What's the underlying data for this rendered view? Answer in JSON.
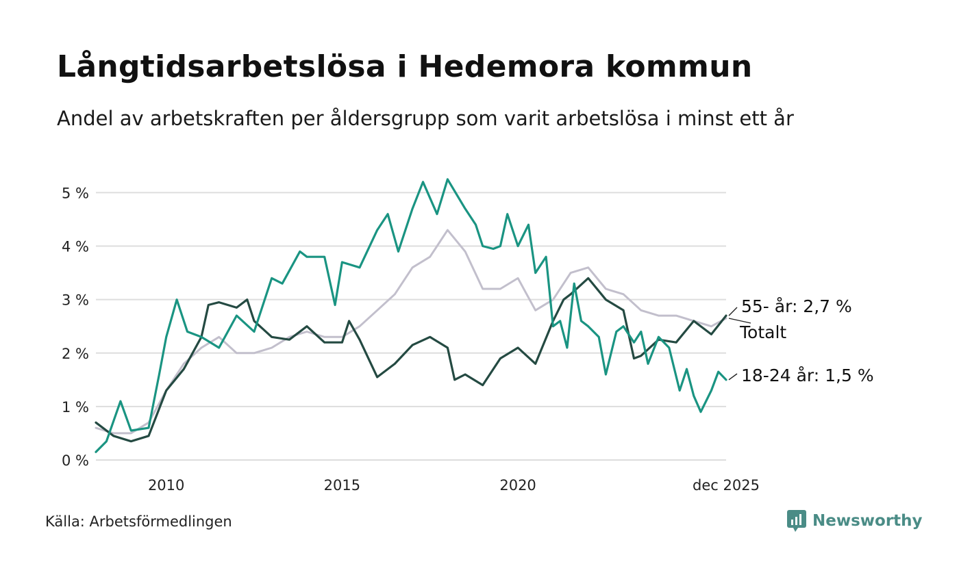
{
  "header": {
    "title": "Långtidsarbetslösa i Hedemora kommun",
    "subtitle": "Andel av arbetskraften per åldersgrupp som varit arbetslösa i minst ett år"
  },
  "footer": {
    "source": "Källa: Arbetsförmedlingen",
    "brand": "Newsworthy"
  },
  "colors": {
    "youth": "#1a9482",
    "senior": "#244a42",
    "total": "#c2bfcc",
    "grid": "#dddddd"
  },
  "chart_data": {
    "type": "line",
    "title": "Långtidsarbetslösa i Hedemora kommun",
    "subtitle": "Andel av arbetskraften per åldersgrupp som varit arbetslösa i minst ett år",
    "xlabel": "",
    "ylabel": "",
    "ylim": [
      0,
      5.3
    ],
    "xlim": [
      2008.0,
      2025.92
    ],
    "grid": true,
    "y_ticks": [
      {
        "value": 0,
        "label": "0 %"
      },
      {
        "value": 1,
        "label": "1 %"
      },
      {
        "value": 2,
        "label": "2 %"
      },
      {
        "value": 3,
        "label": "3 %"
      },
      {
        "value": 4,
        "label": "4 %"
      },
      {
        "value": 5,
        "label": "5 %"
      }
    ],
    "x_ticks": [
      {
        "value": 2010,
        "label": "2010"
      },
      {
        "value": 2015,
        "label": "2015"
      },
      {
        "value": 2020,
        "label": "2020"
      },
      {
        "value": 2025.92,
        "label": "dec 2025"
      }
    ],
    "series": [
      {
        "name": "Totalt",
        "label": "Totalt",
        "color": "#c2bfcc",
        "points": [
          [
            2008.0,
            0.6
          ],
          [
            2008.5,
            0.5
          ],
          [
            2009.0,
            0.5
          ],
          [
            2009.5,
            0.7
          ],
          [
            2010.0,
            1.3
          ],
          [
            2010.5,
            1.8
          ],
          [
            2011.0,
            2.1
          ],
          [
            2011.5,
            2.3
          ],
          [
            2012.0,
            2.0
          ],
          [
            2012.5,
            2.0
          ],
          [
            2013.0,
            2.1
          ],
          [
            2013.5,
            2.3
          ],
          [
            2014.0,
            2.4
          ],
          [
            2014.5,
            2.3
          ],
          [
            2015.0,
            2.3
          ],
          [
            2015.5,
            2.5
          ],
          [
            2016.0,
            2.8
          ],
          [
            2016.5,
            3.1
          ],
          [
            2017.0,
            3.6
          ],
          [
            2017.5,
            3.8
          ],
          [
            2018.0,
            4.3
          ],
          [
            2018.5,
            3.9
          ],
          [
            2019.0,
            3.2
          ],
          [
            2019.5,
            3.2
          ],
          [
            2020.0,
            3.4
          ],
          [
            2020.5,
            2.8
          ],
          [
            2021.0,
            3.0
          ],
          [
            2021.5,
            3.5
          ],
          [
            2022.0,
            3.6
          ],
          [
            2022.5,
            3.2
          ],
          [
            2023.0,
            3.1
          ],
          [
            2023.5,
            2.8
          ],
          [
            2024.0,
            2.7
          ],
          [
            2024.5,
            2.7
          ],
          [
            2025.0,
            2.6
          ],
          [
            2025.5,
            2.5
          ],
          [
            2025.92,
            2.65
          ]
        ]
      },
      {
        "name": "55- år",
        "label": "55- år: 2,7 %",
        "color": "#244a42",
        "points": [
          [
            2008.0,
            0.7
          ],
          [
            2008.5,
            0.45
          ],
          [
            2009.0,
            0.35
          ],
          [
            2009.5,
            0.45
          ],
          [
            2010.0,
            1.3
          ],
          [
            2010.5,
            1.7
          ],
          [
            2011.0,
            2.3
          ],
          [
            2011.2,
            2.9
          ],
          [
            2011.5,
            2.95
          ],
          [
            2012.0,
            2.85
          ],
          [
            2012.3,
            3.0
          ],
          [
            2012.5,
            2.6
          ],
          [
            2013.0,
            2.3
          ],
          [
            2013.5,
            2.25
          ],
          [
            2014.0,
            2.5
          ],
          [
            2014.5,
            2.2
          ],
          [
            2015.0,
            2.2
          ],
          [
            2015.2,
            2.6
          ],
          [
            2015.5,
            2.25
          ],
          [
            2016.0,
            1.55
          ],
          [
            2016.5,
            1.8
          ],
          [
            2017.0,
            2.15
          ],
          [
            2017.5,
            2.3
          ],
          [
            2018.0,
            2.1
          ],
          [
            2018.2,
            1.5
          ],
          [
            2018.5,
            1.6
          ],
          [
            2019.0,
            1.4
          ],
          [
            2019.5,
            1.9
          ],
          [
            2020.0,
            2.1
          ],
          [
            2020.5,
            1.8
          ],
          [
            2021.0,
            2.6
          ],
          [
            2021.3,
            3.0
          ],
          [
            2021.5,
            3.1
          ],
          [
            2022.0,
            3.4
          ],
          [
            2022.5,
            3.0
          ],
          [
            2023.0,
            2.8
          ],
          [
            2023.3,
            1.9
          ],
          [
            2023.5,
            1.95
          ],
          [
            2024.0,
            2.25
          ],
          [
            2024.5,
            2.2
          ],
          [
            2025.0,
            2.6
          ],
          [
            2025.5,
            2.35
          ],
          [
            2025.92,
            2.7
          ]
        ]
      },
      {
        "name": "18-24 år",
        "label": "18-24 år: 1,5 %",
        "color": "#1a9482",
        "points": [
          [
            2008.0,
            0.15
          ],
          [
            2008.3,
            0.35
          ],
          [
            2008.7,
            1.1
          ],
          [
            2009.0,
            0.55
          ],
          [
            2009.5,
            0.6
          ],
          [
            2009.8,
            1.6
          ],
          [
            2010.0,
            2.3
          ],
          [
            2010.3,
            3.0
          ],
          [
            2010.6,
            2.4
          ],
          [
            2011.0,
            2.3
          ],
          [
            2011.5,
            2.1
          ],
          [
            2012.0,
            2.7
          ],
          [
            2012.5,
            2.4
          ],
          [
            2013.0,
            3.4
          ],
          [
            2013.3,
            3.3
          ],
          [
            2013.8,
            3.9
          ],
          [
            2014.0,
            3.8
          ],
          [
            2014.5,
            3.8
          ],
          [
            2014.8,
            2.9
          ],
          [
            2015.0,
            3.7
          ],
          [
            2015.5,
            3.6
          ],
          [
            2016.0,
            4.3
          ],
          [
            2016.3,
            4.6
          ],
          [
            2016.6,
            3.9
          ],
          [
            2017.0,
            4.7
          ],
          [
            2017.3,
            5.2
          ],
          [
            2017.7,
            4.6
          ],
          [
            2018.0,
            5.25
          ],
          [
            2018.5,
            4.7
          ],
          [
            2018.8,
            4.4
          ],
          [
            2019.0,
            4.0
          ],
          [
            2019.3,
            3.95
          ],
          [
            2019.5,
            4.0
          ],
          [
            2019.7,
            4.6
          ],
          [
            2020.0,
            4.0
          ],
          [
            2020.3,
            4.4
          ],
          [
            2020.5,
            3.5
          ],
          [
            2020.8,
            3.8
          ],
          [
            2021.0,
            2.5
          ],
          [
            2021.2,
            2.6
          ],
          [
            2021.4,
            2.1
          ],
          [
            2021.6,
            3.3
          ],
          [
            2021.8,
            2.6
          ],
          [
            2022.0,
            2.5
          ],
          [
            2022.3,
            2.3
          ],
          [
            2022.5,
            1.6
          ],
          [
            2022.8,
            2.4
          ],
          [
            2023.0,
            2.5
          ],
          [
            2023.3,
            2.2
          ],
          [
            2023.5,
            2.4
          ],
          [
            2023.7,
            1.8
          ],
          [
            2024.0,
            2.3
          ],
          [
            2024.3,
            2.1
          ],
          [
            2024.6,
            1.3
          ],
          [
            2024.8,
            1.7
          ],
          [
            2025.0,
            1.2
          ],
          [
            2025.2,
            0.9
          ],
          [
            2025.5,
            1.3
          ],
          [
            2025.7,
            1.65
          ],
          [
            2025.92,
            1.5
          ]
        ]
      }
    ]
  }
}
